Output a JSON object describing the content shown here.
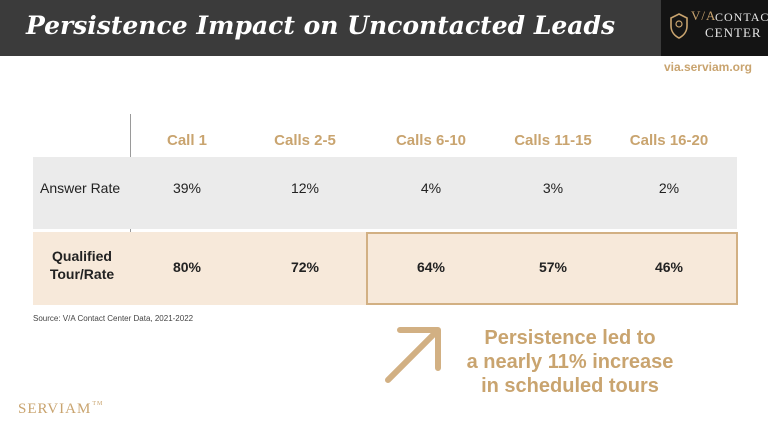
{
  "header": {
    "title": "Persistence Impact on Uncontacted Leads",
    "logo_via": "V/A",
    "logo_contact": "CONTACT",
    "logo_center": "CENTER"
  },
  "site_url": "via.serviam.org",
  "chart_data": {
    "type": "table",
    "columns": [
      "Call 1",
      "Calls 2-5",
      "Calls 6-10",
      "Calls 11-15",
      "Calls 16-20"
    ],
    "rows": [
      {
        "label": "Answer Rate",
        "values": [
          "39%",
          "12%",
          "4%",
          "3%",
          "2%"
        ]
      },
      {
        "label_line1": "Qualified",
        "label_line2": "Tour/Rate",
        "values": [
          "80%",
          "72%",
          "64%",
          "57%",
          "46%"
        ]
      }
    ],
    "highlighted_columns": [
      "Calls 6-10",
      "Calls 11-15",
      "Calls 16-20"
    ]
  },
  "source": "Source: V/A Contact Center Data, 2021-2022",
  "callout": {
    "line1": "Persistence led to",
    "line2": "a nearly 11% increase",
    "line3": "in scheduled tours"
  },
  "brand": {
    "name": "SERVIAM",
    "tm": "TM"
  },
  "colors": {
    "header_bg": "#3b3b3b",
    "logo_bg": "#141414",
    "accent_gold": "#c9a46f",
    "answer_row_bg": "#ebebeb",
    "qualified_row_bg": "#f7e9da",
    "highlight_border": "#d2b083"
  }
}
